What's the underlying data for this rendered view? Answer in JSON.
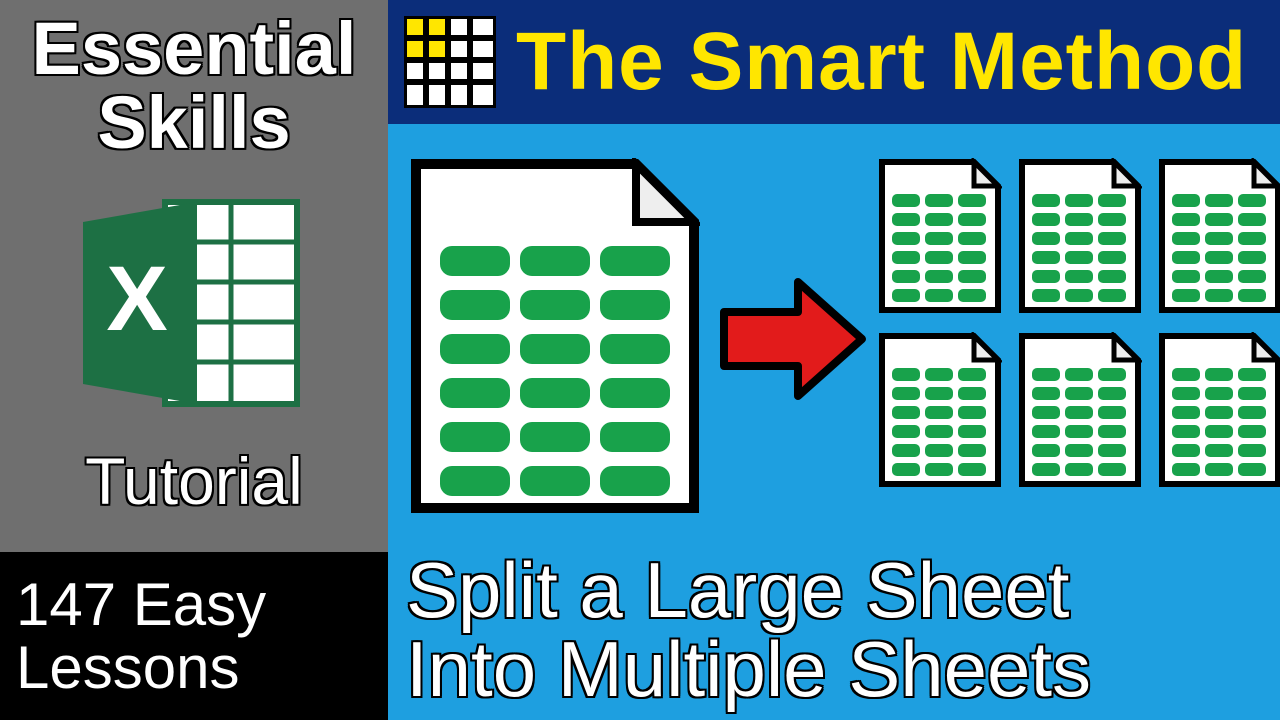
{
  "colors": {
    "left_bg": "#6f6f6f",
    "black": "#000000",
    "banner_bg": "#0b2d7a",
    "banner_text": "#ffe600",
    "content_bg": "#1e9fe0",
    "sheet_fill": "#ffffff",
    "sheet_stroke": "#000000",
    "cell_green": "#18a24b",
    "arrow_fill": "#e21b1b",
    "excel_green": "#1d7044",
    "logo_yellow": "#ffe600"
  },
  "left": {
    "title_line1": "Essential",
    "title_line2": "Skills",
    "tutorial": "Tutorial",
    "lessons_line1": "147 Easy",
    "lessons_line2": "Lessons",
    "excel_letter": "X"
  },
  "banner": {
    "title": "The Smart Method"
  },
  "content": {
    "caption_line1": "Split a Large Sheet",
    "caption_line2": "Into Multiple Sheets",
    "big_sheet": {
      "rows": 6,
      "cols": 3
    },
    "small_sheet": {
      "rows": 6,
      "cols": 3
    },
    "small_count": 6
  }
}
